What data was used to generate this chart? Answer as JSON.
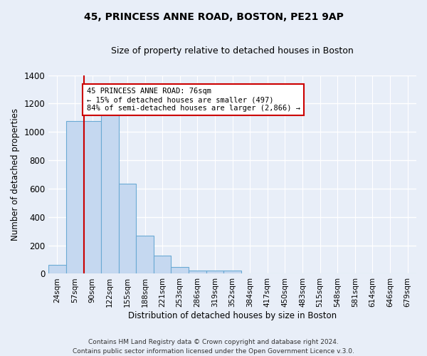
{
  "title1": "45, PRINCESS ANNE ROAD, BOSTON, PE21 9AP",
  "title2": "Size of property relative to detached houses in Boston",
  "xlabel": "Distribution of detached houses by size in Boston",
  "ylabel": "Number of detached properties",
  "categories": [
    "24sqm",
    "57sqm",
    "90sqm",
    "122sqm",
    "155sqm",
    "188sqm",
    "221sqm",
    "253sqm",
    "286sqm",
    "319sqm",
    "352sqm",
    "384sqm",
    "417sqm",
    "450sqm",
    "483sqm",
    "515sqm",
    "548sqm",
    "581sqm",
    "614sqm",
    "646sqm",
    "679sqm"
  ],
  "values": [
    65,
    1075,
    1075,
    1150,
    635,
    270,
    130,
    45,
    20,
    20,
    20,
    0,
    0,
    0,
    0,
    0,
    0,
    0,
    0,
    0,
    0
  ],
  "bar_color": "#c5d8f0",
  "bar_edge_color": "#6aaad4",
  "ylim": [
    0,
    1400
  ],
  "yticks": [
    0,
    200,
    400,
    600,
    800,
    1000,
    1200,
    1400
  ],
  "red_line_x": 1.52,
  "annotation_text": "45 PRINCESS ANNE ROAD: 76sqm\n← 15% of detached houses are smaller (497)\n84% of semi-detached houses are larger (2,866) →",
  "annotation_box_color": "#ffffff",
  "annotation_box_edge": "#cc0000",
  "footer": "Contains HM Land Registry data © Crown copyright and database right 2024.\nContains public sector information licensed under the Open Government Licence v.3.0.",
  "bg_color": "#e8eef8",
  "plot_bg_color": "#e8eef8",
  "grid_color": "#ffffff",
  "title1_fontsize": 10,
  "title2_fontsize": 9
}
